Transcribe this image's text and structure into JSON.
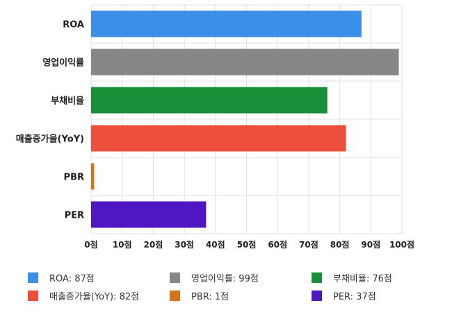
{
  "chart_data": {
    "type": "bar",
    "orientation": "horizontal",
    "categories": [
      "ROA",
      "영업이익률",
      "부채비율",
      "매출증가율(YoY)",
      "PBR",
      "PER"
    ],
    "values": [
      87,
      99,
      76,
      82,
      1,
      37
    ],
    "colors": [
      "#3b8fe6",
      "#878787",
      "#188f38",
      "#ec4f3b",
      "#d4731c",
      "#4f17c2"
    ],
    "xlim": [
      0,
      100
    ],
    "xticks": [
      0,
      10,
      20,
      30,
      40,
      50,
      60,
      70,
      80,
      90,
      100
    ],
    "tick_suffix": "점",
    "grid": true,
    "legend": {
      "placement": "bottom",
      "items": [
        {
          "label": "ROA: 87점",
          "color": "#3b8fe6"
        },
        {
          "label": "영업이익률: 99점",
          "color": "#878787"
        },
        {
          "label": "부채비율: 76점",
          "color": "#188f38"
        },
        {
          "label": "매출증가율(YoY): 82점",
          "color": "#ec4f3b"
        },
        {
          "label": "PBR: 1점",
          "color": "#d4731c"
        },
        {
          "label": "PER: 37점",
          "color": "#4f17c2"
        }
      ]
    }
  }
}
